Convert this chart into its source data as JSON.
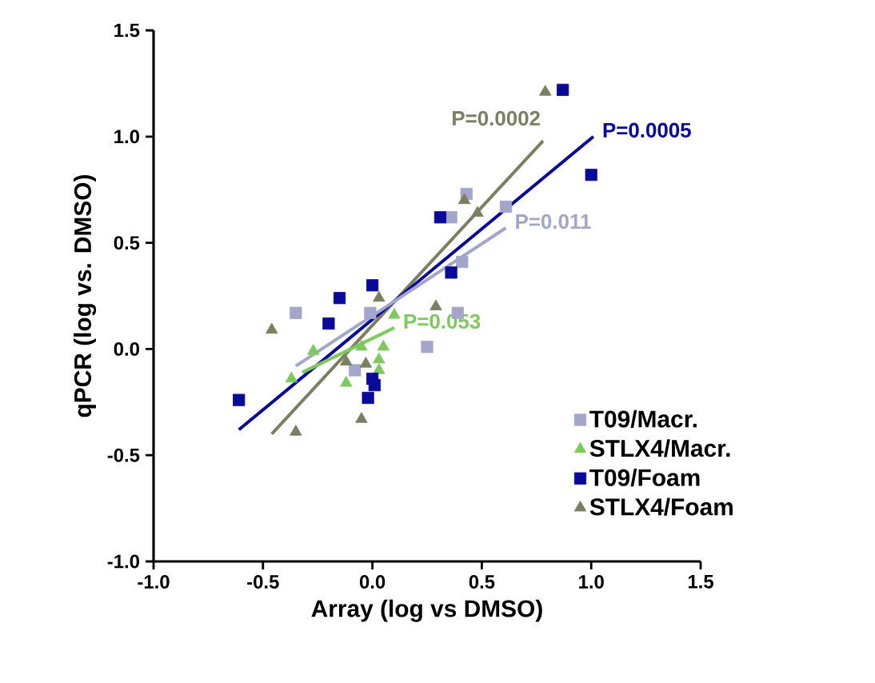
{
  "chart_data": {
    "type": "scatter",
    "xlabel": "Array (log vs DMSO)",
    "ylabel": "qPCR (log vs. DMSO)",
    "xlim": [
      -1.0,
      1.5
    ],
    "ylim": [
      -1.0,
      1.5
    ],
    "xticks": [
      {
        "value": -1.0,
        "label": "-1.0"
      },
      {
        "value": -0.5,
        "label": "-0.5"
      },
      {
        "value": 0.0,
        "label": "0.0"
      },
      {
        "value": 0.5,
        "label": "0.5"
      },
      {
        "value": 1.0,
        "label": "1.0"
      },
      {
        "value": 1.5,
        "label": "1.5"
      }
    ],
    "yticks": [
      {
        "value": -1.0,
        "label": "-1.0"
      },
      {
        "value": -0.5,
        "label": "-0.5"
      },
      {
        "value": 0.0,
        "label": "0.0"
      },
      {
        "value": 0.5,
        "label": "0.5"
      },
      {
        "value": 1.0,
        "label": "1.0"
      },
      {
        "value": 1.5,
        "label": "1.5"
      }
    ],
    "grid": false,
    "legend": "bottom right",
    "series": [
      {
        "name": "T09/Macr.",
        "color": "#a3a6c9",
        "marker": "square",
        "x": [
          0.61,
          0.43,
          0.36,
          0.41,
          -0.35,
          -0.01,
          0.39,
          0.25,
          -0.08
        ],
        "values": [
          0.67,
          0.73,
          0.62,
          0.41,
          0.17,
          0.17,
          0.17,
          0.01,
          -0.1
        ]
      },
      {
        "name": "STLX4/Macr.",
        "color": "#7dc95e",
        "marker": "triangle",
        "x": [
          -0.27,
          -0.37,
          -0.05,
          0.1,
          0.05,
          0.03,
          -0.12,
          0.03
        ],
        "values": [
          -0.01,
          -0.14,
          0.01,
          0.16,
          0.01,
          -0.05,
          -0.16,
          -0.1
        ]
      },
      {
        "name": "T09/Foam",
        "color": "#0a0a9a",
        "marker": "square",
        "x": [
          0.87,
          1.0,
          0.31,
          0.36,
          0.0,
          -0.15,
          -0.2,
          -0.61,
          0.0,
          0.01,
          -0.02
        ],
        "values": [
          1.22,
          0.82,
          0.62,
          0.36,
          0.3,
          0.24,
          0.12,
          -0.24,
          -0.14,
          -0.17,
          -0.23
        ]
      },
      {
        "name": "STLX4/Foam",
        "color": "#7b7f62",
        "marker": "triangle",
        "x": [
          0.79,
          0.42,
          0.48,
          -0.46,
          0.03,
          0.29,
          -0.12,
          -0.03,
          -0.35,
          -0.05
        ],
        "values": [
          1.21,
          0.7,
          0.64,
          0.09,
          0.24,
          0.2,
          -0.06,
          -0.07,
          -0.39,
          -0.33
        ]
      },
      {
        "type": "line",
        "color": "#7b7f62",
        "x": [
          -0.46,
          0.78
        ],
        "values": [
          -0.4,
          0.98
        ]
      },
      {
        "type": "line",
        "color": "#0a0a9a",
        "x": [
          -0.61,
          1.01
        ],
        "values": [
          -0.38,
          1.0
        ]
      },
      {
        "type": "line",
        "color": "#a3a6c9",
        "x": [
          -0.35,
          0.61
        ],
        "values": [
          -0.08,
          0.57
        ]
      },
      {
        "type": "line",
        "color": "#7dc95e",
        "x": [
          -0.32,
          0.1
        ],
        "values": [
          -0.11,
          0.1
        ]
      }
    ],
    "annotations": [
      "P=0.0002",
      "P=0.0005",
      "P=0.011",
      "P=0.053"
    ]
  }
}
